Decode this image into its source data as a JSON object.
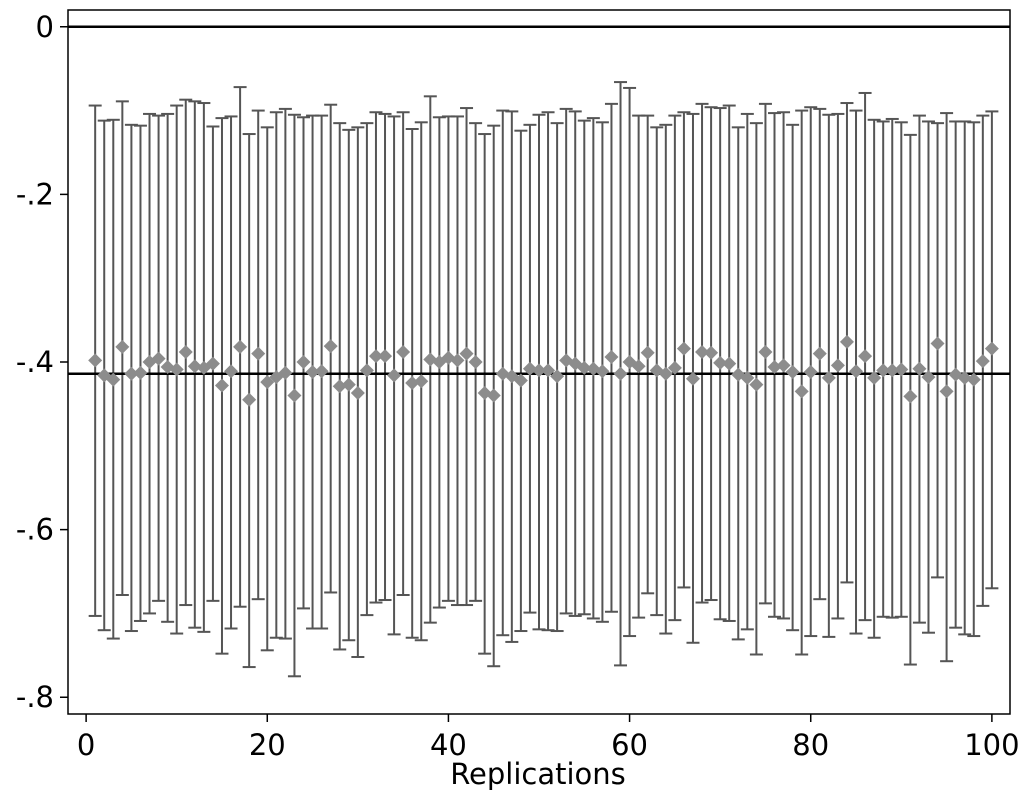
{
  "chart_data": {
    "type": "scatter",
    "title": "",
    "xlabel": "Replications",
    "ylabel": "",
    "xlim": [
      -2,
      102
    ],
    "ylim": [
      -0.82,
      0.02
    ],
    "xticks": [
      0,
      20,
      40,
      60,
      80,
      100
    ],
    "xtick_labels": [
      "0",
      "20",
      "40",
      "60",
      "80",
      "100"
    ],
    "yticks": [
      0,
      -0.2,
      -0.4,
      -0.6,
      -0.8
    ],
    "ytick_labels": [
      "0",
      "-.2",
      "-.4",
      "-.6",
      "-.8"
    ],
    "reference_lines": [
      0,
      -0.414
    ],
    "grid": false,
    "legend": "none",
    "colors": {
      "marker": "#8c8c8c",
      "errorbar": "#555555",
      "reference": "#000000"
    },
    "x": [
      1,
      2,
      3,
      4,
      5,
      6,
      7,
      8,
      9,
      10,
      11,
      12,
      13,
      14,
      15,
      16,
      17,
      18,
      19,
      20,
      21,
      22,
      23,
      24,
      25,
      26,
      27,
      28,
      29,
      30,
      31,
      32,
      33,
      34,
      35,
      36,
      37,
      38,
      39,
      40,
      41,
      42,
      43,
      44,
      45,
      46,
      47,
      48,
      49,
      50,
      51,
      52,
      53,
      54,
      55,
      56,
      57,
      58,
      59,
      60,
      61,
      62,
      63,
      64,
      65,
      66,
      67,
      68,
      69,
      70,
      71,
      72,
      73,
      74,
      75,
      76,
      77,
      78,
      79,
      80,
      81,
      82,
      83,
      84,
      85,
      86,
      87,
      88,
      89,
      90,
      91,
      92,
      93,
      94,
      95,
      96,
      97,
      98,
      99,
      100
    ],
    "estimate": [
      -0.398,
      -0.416,
      -0.421,
      -0.382,
      -0.414,
      -0.413,
      -0.4,
      -0.396,
      -0.406,
      -0.409,
      -0.388,
      -0.405,
      -0.407,
      -0.402,
      -0.428,
      -0.411,
      -0.382,
      -0.445,
      -0.39,
      -0.424,
      -0.418,
      -0.413,
      -0.44,
      -0.4,
      -0.412,
      -0.411,
      -0.381,
      -0.429,
      -0.427,
      -0.437,
      -0.41,
      -0.393,
      -0.393,
      -0.416,
      -0.388,
      -0.425,
      -0.423,
      -0.397,
      -0.4,
      -0.395,
      -0.398,
      -0.39,
      -0.4,
      -0.437,
      -0.44,
      -0.414,
      -0.417,
      -0.422,
      -0.408,
      -0.41,
      -0.41,
      -0.417,
      -0.398,
      -0.402,
      -0.407,
      -0.408,
      -0.411,
      -0.394,
      -0.414,
      -0.4,
      -0.405,
      -0.389,
      -0.41,
      -0.414,
      -0.407,
      -0.384,
      -0.42,
      -0.388,
      -0.389,
      -0.401,
      -0.402,
      -0.415,
      -0.419,
      -0.427,
      -0.388,
      -0.406,
      -0.404,
      -0.412,
      -0.435,
      -0.412,
      -0.39,
      -0.419,
      -0.404,
      -0.376,
      -0.411,
      -0.393,
      -0.419,
      -0.41,
      -0.41,
      -0.409,
      -0.441,
      -0.408,
      -0.418,
      -0.378,
      -0.435,
      -0.415,
      -0.419,
      -0.421,
      -0.399,
      -0.384
    ],
    "upper": [
      -0.094,
      -0.112,
      -0.111,
      -0.089,
      -0.117,
      -0.118,
      -0.104,
      -0.106,
      -0.104,
      -0.094,
      -0.087,
      -0.089,
      -0.091,
      -0.119,
      -0.109,
      -0.107,
      -0.072,
      -0.128,
      -0.1,
      -0.12,
      -0.102,
      -0.098,
      -0.105,
      -0.108,
      -0.106,
      -0.106,
      -0.093,
      -0.115,
      -0.123,
      -0.12,
      -0.115,
      -0.102,
      -0.104,
      -0.107,
      -0.102,
      -0.122,
      -0.114,
      -0.083,
      -0.108,
      -0.107,
      -0.107,
      -0.097,
      -0.115,
      -0.128,
      -0.118,
      -0.1,
      -0.101,
      -0.124,
      -0.117,
      -0.105,
      -0.102,
      -0.115,
      -0.098,
      -0.101,
      -0.112,
      -0.109,
      -0.114,
      -0.092,
      -0.066,
      -0.073,
      -0.106,
      -0.106,
      -0.12,
      -0.117,
      -0.106,
      -0.102,
      -0.104,
      -0.092,
      -0.096,
      -0.097,
      -0.094,
      -0.12,
      -0.104,
      -0.115,
      -0.092,
      -0.103,
      -0.102,
      -0.117,
      -0.1,
      -0.096,
      -0.098,
      -0.105,
      -0.104,
      -0.091,
      -0.1,
      -0.079,
      -0.111,
      -0.113,
      -0.11,
      -0.114,
      -0.129,
      -0.106,
      -0.113,
      -0.115,
      -0.103,
      -0.113,
      -0.113,
      -0.114,
      -0.106,
      -0.101
    ],
    "lower": [
      -0.703,
      -0.72,
      -0.73,
      -0.678,
      -0.721,
      -0.709,
      -0.7,
      -0.685,
      -0.71,
      -0.724,
      -0.69,
      -0.717,
      -0.722,
      -0.685,
      -0.748,
      -0.718,
      -0.692,
      -0.764,
      -0.683,
      -0.744,
      -0.729,
      -0.73,
      -0.775,
      -0.694,
      -0.718,
      -0.718,
      -0.675,
      -0.743,
      -0.732,
      -0.752,
      -0.702,
      -0.687,
      -0.684,
      -0.725,
      -0.678,
      -0.729,
      -0.732,
      -0.711,
      -0.693,
      -0.685,
      -0.69,
      -0.69,
      -0.685,
      -0.748,
      -0.763,
      -0.726,
      -0.734,
      -0.721,
      -0.699,
      -0.719,
      -0.72,
      -0.721,
      -0.7,
      -0.703,
      -0.701,
      -0.706,
      -0.71,
      -0.698,
      -0.762,
      -0.727,
      -0.705,
      -0.676,
      -0.702,
      -0.724,
      -0.708,
      -0.669,
      -0.735,
      -0.687,
      -0.684,
      -0.707,
      -0.709,
      -0.731,
      -0.719,
      -0.749,
      -0.688,
      -0.704,
      -0.706,
      -0.72,
      -0.749,
      -0.727,
      -0.683,
      -0.728,
      -0.706,
      -0.663,
      -0.724,
      -0.708,
      -0.729,
      -0.704,
      -0.705,
      -0.704,
      -0.761,
      -0.711,
      -0.723,
      -0.657,
      -0.757,
      -0.717,
      -0.725,
      -0.727,
      -0.691,
      -0.67
    ]
  }
}
